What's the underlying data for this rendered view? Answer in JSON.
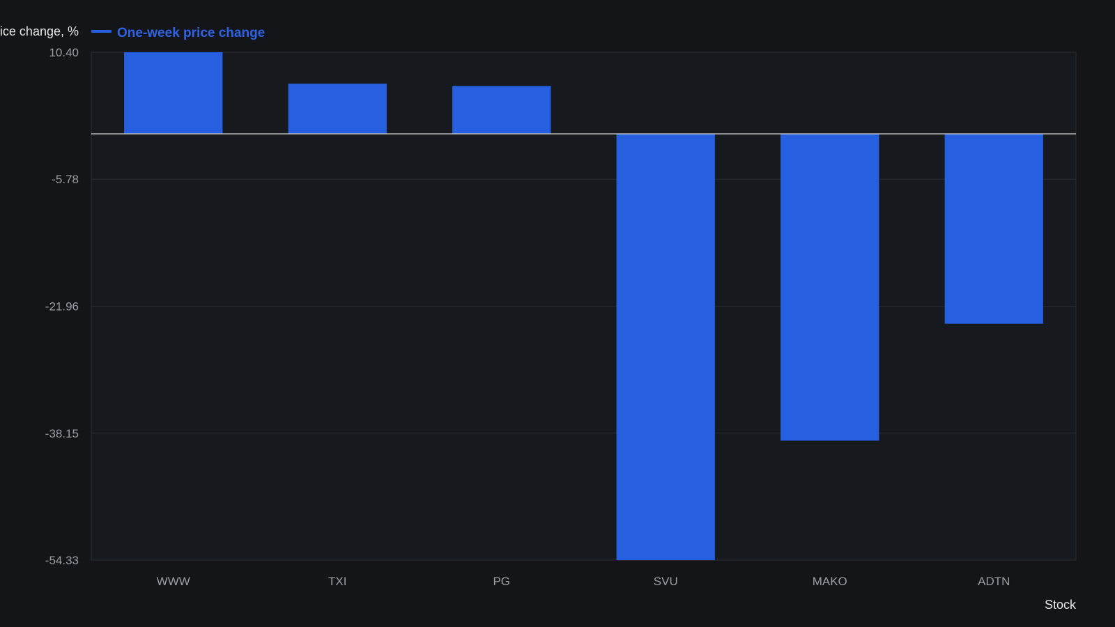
{
  "chart_data": {
    "type": "bar",
    "ylabel": "One-week price change, %",
    "xlabel": "Stock",
    "categories": [
      "WWW",
      "TXI",
      "PG",
      "SVU",
      "MAKO",
      "ADTN"
    ],
    "series": [
      {
        "name": "One-week price change",
        "color": "#2660e0",
        "values": [
          10.4,
          6.4,
          6.1,
          -54.33,
          -39.1,
          -24.2
        ]
      }
    ],
    "ylim": [
      -54.33,
      10.4
    ],
    "yticks": [
      "10.40",
      "-5.78",
      "-21.96",
      "-38.15",
      "-54.33"
    ],
    "ytick_values": [
      10.4,
      -5.78,
      -21.96,
      -38.15,
      -54.33
    ],
    "grid": true,
    "legend_position": "top-left",
    "colors": {
      "background": "#131518",
      "plot_background": "#16191d",
      "grid": "#2a2d33",
      "zero_line": "#c8c8c8",
      "bar": "#2660e0",
      "legend_text": "#2f63e6",
      "tick_text": "#9a9ea5",
      "label_text": "#e6e6e6"
    }
  }
}
